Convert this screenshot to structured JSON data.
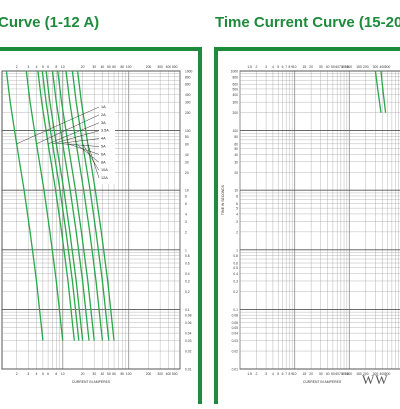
{
  "titles": {
    "left": "Curve (1-12 A)",
    "right": "Time Current Curve (15-20"
  },
  "watermark": "WW",
  "colors": {
    "accent": "#1e8a3c",
    "curve": "#2aa84a",
    "grid": "#999999"
  },
  "chart_data": [
    {
      "type": "line",
      "title": "Curve (1-12 A)",
      "xlabel": "CURRENT IN AMPERES",
      "ylabel": "",
      "x_scale": "log",
      "y_scale": "log",
      "xlim": [
        1.2,
        600
      ],
      "ylim": [
        0.01,
        1000
      ],
      "grid": true,
      "legend": "top-right",
      "y_tick_labels": [
        "1000",
        "800",
        "600",
        "400",
        "300",
        "200",
        "100",
        "80",
        "60",
        "40",
        "30",
        "20",
        "10",
        "8",
        "6",
        "4",
        "3",
        "2",
        "1",
        "0.8",
        "0.6",
        "0.4",
        "0.3",
        "0.2",
        "0.1",
        "0.08",
        "0.06",
        "0.04",
        "0.03",
        "0.02",
        "0.01"
      ],
      "x_tick_labels": [
        "2",
        "3",
        "4",
        "5",
        "6",
        "8",
        "10",
        "20",
        "30",
        "40",
        "50",
        "60",
        "80",
        "100",
        "200",
        "300",
        "400",
        "500"
      ],
      "series": [
        {
          "name": "1A",
          "x": [
            1.4,
            1.6,
            2.0,
            2.6,
            3.2,
            4.0,
            5.0
          ],
          "y": [
            1000,
            300,
            60,
            10,
            2,
            0.3,
            0.03
          ]
        },
        {
          "name": "2A",
          "x": [
            2.8,
            3.2,
            4.0,
            5.2,
            6.4,
            8.0,
            10
          ],
          "y": [
            1000,
            300,
            60,
            10,
            2,
            0.3,
            0.03
          ]
        },
        {
          "name": "3A",
          "x": [
            4.2,
            4.8,
            6.0,
            7.8,
            9.6,
            12,
            15
          ],
          "y": [
            1000,
            300,
            60,
            10,
            2,
            0.3,
            0.03
          ]
        },
        {
          "name": "3.5A",
          "x": [
            4.9,
            5.6,
            7.0,
            9.1,
            11.2,
            14,
            17.5
          ],
          "y": [
            1000,
            300,
            60,
            10,
            2,
            0.3,
            0.03
          ]
        },
        {
          "name": "4A",
          "x": [
            5.6,
            6.4,
            8.0,
            10.4,
            12.8,
            16,
            20
          ],
          "y": [
            1000,
            300,
            60,
            10,
            2,
            0.3,
            0.03
          ]
        },
        {
          "name": "5A",
          "x": [
            7.0,
            8.0,
            10,
            13,
            16,
            20,
            25
          ],
          "y": [
            1000,
            300,
            60,
            10,
            2,
            0.3,
            0.03
          ]
        },
        {
          "name": "6A",
          "x": [
            8.4,
            9.6,
            12,
            15.6,
            19.2,
            24,
            30
          ],
          "y": [
            1000,
            300,
            60,
            10,
            2,
            0.3,
            0.03
          ]
        },
        {
          "name": "8A",
          "x": [
            11.2,
            12.8,
            16,
            20.8,
            25.6,
            32,
            40
          ],
          "y": [
            1000,
            300,
            60,
            10,
            2,
            0.3,
            0.03
          ]
        },
        {
          "name": "10A",
          "x": [
            14,
            16,
            20,
            26,
            32,
            40,
            50
          ],
          "y": [
            1000,
            300,
            60,
            10,
            2,
            0.3,
            0.03
          ]
        },
        {
          "name": "12A",
          "x": [
            16.8,
            19.2,
            24,
            31.2,
            38.4,
            48,
            60
          ],
          "y": [
            1000,
            300,
            60,
            10,
            2,
            0.3,
            0.03
          ]
        }
      ]
    },
    {
      "type": "line",
      "title": "Time Current Curve (15-20",
      "xlabel": "CURRENT IN AMPERES",
      "ylabel": "TIME IN SECONDS",
      "x_scale": "log",
      "y_scale": "log",
      "xlim": [
        1,
        1000
      ],
      "ylim": [
        0.01,
        1000
      ],
      "grid": true,
      "y_tick_labels": [
        "1000",
        "800",
        "600",
        "500",
        "400",
        "300",
        "200",
        "100",
        "80",
        "60",
        "50",
        "40",
        "30",
        "20",
        "10",
        "8",
        "6",
        "5",
        "4",
        "3",
        "2",
        "1",
        "0.8",
        "0.6",
        "0.5",
        "0.4",
        "0.3",
        "0.2",
        "0.1",
        "0.08",
        "0.06",
        "0.05",
        "0.04",
        "0.03",
        "0.02",
        "0.01"
      ],
      "x_tick_labels": [
        "1.5",
        "2",
        "3",
        "4",
        "5",
        "6",
        "7",
        "8",
        "9",
        "10",
        "15",
        "20",
        "30",
        "40",
        "50",
        "60",
        "70",
        "80",
        "90",
        "100",
        "150",
        "200",
        "300",
        "400",
        "500"
      ],
      "series": [
        {
          "x": [
            300,
            330,
            380
          ],
          "y": [
            1000,
            500,
            200
          ]
        },
        {
          "x": [
            380,
            410,
            460
          ],
          "y": [
            1000,
            500,
            200
          ]
        }
      ]
    }
  ]
}
